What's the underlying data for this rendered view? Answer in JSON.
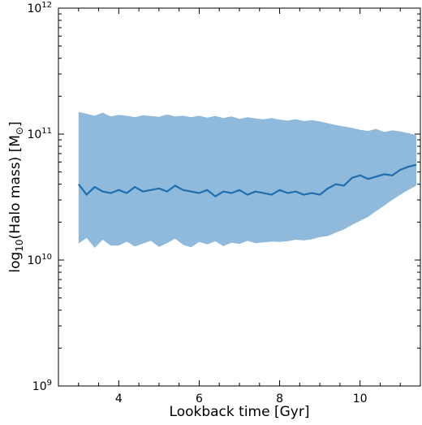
{
  "chart_data": {
    "type": "area",
    "title": "",
    "xlabel": "Lookback time [Gyr]",
    "ylabel": "log10(Halo mass) [M⊙]",
    "xlim": [
      2.5,
      11.5
    ],
    "ylim": [
      1000000000,
      1000000000000
    ],
    "yscale": "log",
    "grid": false,
    "x_ticks": [
      {
        "value": 4,
        "label": "4"
      },
      {
        "value": 6,
        "label": "6"
      },
      {
        "value": 8,
        "label": "8"
      },
      {
        "value": 10,
        "label": "10"
      }
    ],
    "y_ticks": [
      {
        "value": 1000000000,
        "base": "10",
        "exp": "9"
      },
      {
        "value": 10000000000,
        "base": "10",
        "exp": "10"
      },
      {
        "value": 100000000000,
        "base": "10",
        "exp": "11"
      },
      {
        "value": 1000000000000,
        "base": "10",
        "exp": "12"
      }
    ],
    "colors": {
      "band": "#8fbadb",
      "median": "#1f6fb0"
    },
    "series": [
      {
        "role": "median",
        "x": [
          3.0,
          3.2,
          3.4,
          3.6,
          3.8,
          4.0,
          4.2,
          4.4,
          4.6,
          4.8,
          5.0,
          5.2,
          5.4,
          5.6,
          5.8,
          6.0,
          6.2,
          6.4,
          6.6,
          6.8,
          7.0,
          7.2,
          7.4,
          7.6,
          7.8,
          8.0,
          8.2,
          8.4,
          8.6,
          8.8,
          9.0,
          9.2,
          9.4,
          9.6,
          9.8,
          10.0,
          10.2,
          10.4,
          10.6,
          10.8,
          11.0,
          11.2,
          11.4
        ],
        "y": [
          40000000000,
          33000000000,
          38000000000,
          35000000000,
          34000000000,
          36000000000,
          34000000000,
          38000000000,
          35000000000,
          36000000000,
          37000000000,
          35000000000,
          39000000000,
          36000000000,
          35000000000,
          34000000000,
          36000000000,
          32000000000,
          35000000000,
          34000000000,
          36000000000,
          33000000000,
          35000000000,
          34000000000,
          33000000000,
          36000000000,
          34000000000,
          35000000000,
          33000000000,
          34000000000,
          33000000000,
          37000000000,
          40000000000,
          39000000000,
          45000000000,
          47000000000,
          44000000000,
          46000000000,
          48000000000,
          47000000000,
          52000000000,
          55000000000,
          57000000000
        ]
      },
      {
        "role": "upper-band",
        "x": [
          3.0,
          3.2,
          3.4,
          3.6,
          3.8,
          4.0,
          4.2,
          4.4,
          4.6,
          4.8,
          5.0,
          5.2,
          5.4,
          5.6,
          5.8,
          6.0,
          6.2,
          6.4,
          6.6,
          6.8,
          7.0,
          7.2,
          7.4,
          7.6,
          7.8,
          8.0,
          8.2,
          8.4,
          8.6,
          8.8,
          9.0,
          9.2,
          9.4,
          9.6,
          9.8,
          10.0,
          10.2,
          10.4,
          10.6,
          10.8,
          11.0,
          11.2,
          11.4
        ],
        "y": [
          150000000000,
          145000000000,
          140000000000,
          148000000000,
          138000000000,
          142000000000,
          140000000000,
          136000000000,
          141000000000,
          139000000000,
          137000000000,
          143000000000,
          138000000000,
          140000000000,
          136000000000,
          140000000000,
          135000000000,
          139000000000,
          134000000000,
          138000000000,
          132000000000,
          136000000000,
          133000000000,
          131000000000,
          134000000000,
          130000000000,
          128000000000,
          131000000000,
          127000000000,
          129000000000,
          126000000000,
          122000000000,
          118000000000,
          115000000000,
          112000000000,
          108000000000,
          106000000000,
          110000000000,
          104000000000,
          107000000000,
          105000000000,
          102000000000,
          98000000000
        ]
      },
      {
        "role": "lower-band",
        "x": [
          3.0,
          3.2,
          3.4,
          3.6,
          3.8,
          4.0,
          4.2,
          4.4,
          4.6,
          4.8,
          5.0,
          5.2,
          5.4,
          5.6,
          5.8,
          6.0,
          6.2,
          6.4,
          6.6,
          6.8,
          7.0,
          7.2,
          7.4,
          7.6,
          7.8,
          8.0,
          8.2,
          8.4,
          8.6,
          8.8,
          9.0,
          9.2,
          9.4,
          9.6,
          9.8,
          10.0,
          10.2,
          10.4,
          10.6,
          10.8,
          11.0,
          11.2,
          11.4
        ],
        "y": [
          13500000000,
          15000000000,
          12500000000,
          14500000000,
          13000000000,
          13000000000,
          14000000000,
          12800000000,
          13500000000,
          14200000000,
          12700000000,
          13600000000,
          14800000000,
          13200000000,
          12600000000,
          13900000000,
          13300000000,
          14100000000,
          12900000000,
          13700000000,
          13400000000,
          14200000000,
          13600000000,
          13800000000,
          14000000000,
          13900000000,
          14100000000,
          14500000000,
          14300000000,
          14600000000,
          15200000000,
          15500000000,
          16500000000,
          17500000000,
          19000000000,
          20500000000,
          22000000000,
          24500000000,
          27000000000,
          30000000000,
          33000000000,
          36000000000,
          39000000000
        ]
      }
    ]
  }
}
